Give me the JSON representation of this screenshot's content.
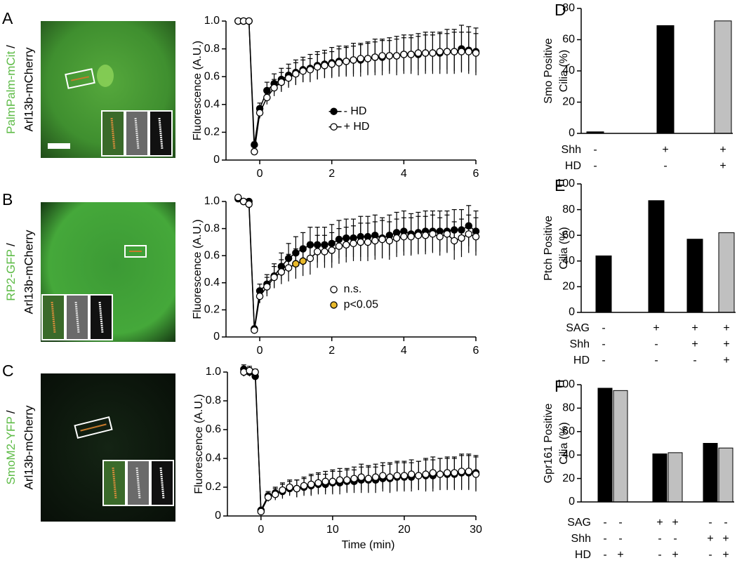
{
  "images": [
    {
      "panel": "A",
      "green_label": "PalmPalm-mCit",
      "separator": "/",
      "red_label": "Arl13b-mCherry"
    },
    {
      "panel": "B",
      "green_label": "RP2-GFP",
      "separator": "/",
      "red_label": "Arl13b-mCherry"
    },
    {
      "panel": "C",
      "green_label": "SmoM2-YFP",
      "separator": "/",
      "red_label": "Arl13b-mCherry"
    }
  ],
  "chart_data": [
    {
      "type": "line",
      "ylabel": "Fluorescence (A.U.)",
      "x": [
        -0.6,
        -0.45,
        -0.3,
        -0.15,
        0,
        0.2,
        0.4,
        0.6,
        0.8,
        1,
        1.2,
        1.4,
        1.6,
        1.8,
        2,
        2.2,
        2.4,
        2.6,
        2.8,
        3,
        3.2,
        3.4,
        3.6,
        3.8,
        4,
        4.2,
        4.4,
        4.6,
        4.8,
        5,
        5.2,
        5.4,
        5.6,
        5.8,
        6
      ],
      "xlim": [
        -0.8,
        6
      ],
      "xticks": [
        0,
        2,
        4,
        6
      ],
      "ylim": [
        0,
        1
      ],
      "yticks": [
        0,
        0.2,
        0.4,
        0.6,
        0.8,
        {
          "value": 1,
          "label": "1.0"
        }
      ],
      "legend": "right",
      "series": [
        {
          "name": "- HD",
          "color": "#000000",
          "fill": "#000000",
          "values": [
            1.0,
            1.0,
            1.0,
            0.11,
            0.37,
            0.5,
            0.55,
            0.58,
            0.61,
            0.63,
            0.65,
            0.66,
            0.68,
            0.69,
            0.7,
            0.71,
            0.71,
            0.72,
            0.72,
            0.73,
            0.74,
            0.74,
            0.75,
            0.75,
            0.76,
            0.76,
            0.76,
            0.77,
            0.77,
            0.77,
            0.78,
            0.78,
            0.8,
            0.79,
            0.78
          ],
          "errors": [
            0.01,
            0.01,
            0.01,
            0.02,
            0.04,
            0.06,
            0.07,
            0.08,
            0.08,
            0.09,
            0.09,
            0.1,
            0.1,
            0.1,
            0.11,
            0.11,
            0.11,
            0.12,
            0.12,
            0.12,
            0.13,
            0.13,
            0.13,
            0.14,
            0.14,
            0.14,
            0.15,
            0.15,
            0.15,
            0.15,
            0.16,
            0.16,
            0.17,
            0.17,
            0.17
          ]
        },
        {
          "name": "+ HD",
          "color": "#000000",
          "fill": "#ffffff",
          "values": [
            1.0,
            1.0,
            1.0,
            0.06,
            0.34,
            0.45,
            0.52,
            0.56,
            0.59,
            0.62,
            0.64,
            0.65,
            0.67,
            0.68,
            0.69,
            0.7,
            0.71,
            0.72,
            0.73,
            0.73,
            0.74,
            0.75,
            0.75,
            0.75,
            0.76,
            0.76,
            0.77,
            0.77,
            0.77,
            0.78,
            0.78,
            0.78,
            0.78,
            0.78,
            0.77
          ],
          "errors": [
            0.01,
            0.01,
            0.01,
            0.02,
            0.04,
            0.05,
            0.06,
            0.07,
            0.07,
            0.08,
            0.08,
            0.08,
            0.09,
            0.09,
            0.09,
            0.1,
            0.1,
            0.1,
            0.1,
            0.11,
            0.11,
            0.11,
            0.11,
            0.12,
            0.12,
            0.12,
            0.12,
            0.13,
            0.13,
            0.13,
            0.13,
            0.14,
            0.14,
            0.14,
            0.14
          ]
        }
      ]
    },
    {
      "type": "line",
      "ylabel": "Fluorescence (A.U.)",
      "x": [
        -0.6,
        -0.45,
        -0.3,
        -0.15,
        0,
        0.2,
        0.4,
        0.6,
        0.8,
        1,
        1.2,
        1.4,
        1.6,
        1.8,
        2,
        2.2,
        2.4,
        2.6,
        2.8,
        3,
        3.2,
        3.4,
        3.6,
        3.8,
        4,
        4.2,
        4.4,
        4.6,
        4.8,
        5,
        5.2,
        5.4,
        5.6,
        5.8,
        6
      ],
      "xlim": [
        -0.8,
        6
      ],
      "xticks": [
        0,
        2,
        4,
        6
      ],
      "ylim": [
        0,
        1
      ],
      "yticks": [
        0,
        0.2,
        0.4,
        0.6,
        0.8,
        {
          "value": 1,
          "label": "1.0"
        }
      ],
      "legend": "right",
      "series": [
        {
          "color": "#000000",
          "fill": "#000000",
          "values": [
            1.02,
            1.0,
            1.0,
            0.06,
            0.34,
            0.39,
            0.45,
            0.52,
            0.58,
            0.62,
            0.65,
            0.68,
            0.68,
            0.68,
            0.69,
            0.72,
            0.73,
            0.73,
            0.74,
            0.74,
            0.75,
            0.73,
            0.75,
            0.77,
            0.78,
            0.76,
            0.77,
            0.78,
            0.78,
            0.78,
            0.78,
            0.79,
            0.79,
            0.82,
            0.78
          ],
          "errors": [
            0.01,
            0.01,
            0.01,
            0.02,
            0.05,
            0.07,
            0.09,
            0.1,
            0.11,
            0.12,
            0.12,
            0.13,
            0.13,
            0.13,
            0.14,
            0.14,
            0.14,
            0.14,
            0.15,
            0.15,
            0.15,
            0.15,
            0.15,
            0.15,
            0.15,
            0.15,
            0.15,
            0.15,
            0.15,
            0.15,
            0.15,
            0.15,
            0.15,
            0.15,
            0.15
          ]
        },
        {
          "name": "n.s.",
          "color": "#000000",
          "fill": "#ffffff",
          "values": [
            1.03,
            1.0,
            0.98,
            0.05,
            0.3,
            0.37,
            0.44,
            0.48,
            0.51,
            0.54,
            0.56,
            0.58,
            0.63,
            0.63,
            0.64,
            0.67,
            0.68,
            0.69,
            0.7,
            0.7,
            0.71,
            0.72,
            0.71,
            0.73,
            0.74,
            0.74,
            0.75,
            0.75,
            0.76,
            0.74,
            0.76,
            0.71,
            0.73,
            0.76,
            0.74
          ],
          "errors": [
            0.01,
            0.01,
            0.01,
            0.02,
            0.05,
            0.07,
            0.08,
            0.09,
            0.1,
            0.11,
            0.11,
            0.12,
            0.12,
            0.12,
            0.13,
            0.13,
            0.13,
            0.13,
            0.14,
            0.14,
            0.14,
            0.14,
            0.14,
            0.14,
            0.14,
            0.14,
            0.14,
            0.14,
            0.14,
            0.14,
            0.14,
            0.14,
            0.14,
            0.14,
            0.14
          ]
        },
        {
          "name": "p<0.05",
          "color": "#000000",
          "fill": "#e8b92b",
          "line": false,
          "values": [
            null,
            null,
            null,
            null,
            null,
            null,
            null,
            null,
            null,
            0.54,
            0.56,
            null,
            null,
            null,
            null,
            null,
            null,
            null,
            null,
            null,
            null,
            null,
            null,
            null,
            null,
            null,
            null,
            null,
            null,
            null,
            null,
            null,
            null,
            null,
            null
          ]
        }
      ]
    },
    {
      "type": "line",
      "ylabel": "Fluorescence (A.U.)",
      "xlabel": "Time (min)",
      "x": [
        -2.4,
        -1.6,
        -0.8,
        0,
        1,
        2,
        3,
        4,
        5,
        6,
        7,
        8,
        9,
        10,
        11,
        12,
        13,
        14,
        15,
        16,
        17,
        18,
        19,
        20,
        21,
        22,
        23,
        24,
        25,
        26,
        27,
        28,
        29,
        30
      ],
      "xlim": [
        -4,
        30
      ],
      "xticks": [
        0,
        10,
        20,
        30
      ],
      "ylim": [
        0,
        1
      ],
      "yticks": [
        0,
        0.2,
        0.4,
        0.6,
        0.8,
        {
          "value": 1,
          "label": "1.0"
        }
      ],
      "series": [
        {
          "color": "#000000",
          "fill": "#000000",
          "values": [
            1.02,
            1.0,
            0.97,
            0.04,
            0.14,
            0.16,
            0.17,
            0.19,
            0.19,
            0.2,
            0.21,
            0.22,
            0.22,
            0.23,
            0.23,
            0.24,
            0.24,
            0.25,
            0.25,
            0.25,
            0.26,
            0.26,
            0.27,
            0.27,
            0.27,
            0.28,
            0.28,
            0.28,
            0.29,
            0.29,
            0.29,
            0.3,
            0.3,
            0.3
          ],
          "errors": [
            0.03,
            0.03,
            0.02,
            0.01,
            0.03,
            0.04,
            0.05,
            0.05,
            0.06,
            0.06,
            0.07,
            0.07,
            0.07,
            0.08,
            0.08,
            0.08,
            0.08,
            0.09,
            0.09,
            0.09,
            0.09,
            0.1,
            0.1,
            0.1,
            0.1,
            0.1,
            0.11,
            0.11,
            0.11,
            0.11,
            0.11,
            0.12,
            0.12,
            0.12
          ]
        },
        {
          "color": "#000000",
          "fill": "#ffffff",
          "values": [
            1.0,
            1.01,
            1.0,
            0.03,
            0.13,
            0.15,
            0.18,
            0.2,
            0.19,
            0.21,
            0.22,
            0.23,
            0.24,
            0.24,
            0.25,
            0.25,
            0.26,
            0.27,
            0.26,
            0.27,
            0.28,
            0.27,
            0.28,
            0.28,
            0.29,
            0.28,
            0.29,
            0.3,
            0.29,
            0.3,
            0.3,
            0.31,
            0.31,
            0.29
          ],
          "errors": [
            0.03,
            0.03,
            0.02,
            0.01,
            0.03,
            0.04,
            0.05,
            0.05,
            0.06,
            0.06,
            0.07,
            0.07,
            0.07,
            0.08,
            0.08,
            0.08,
            0.08,
            0.09,
            0.09,
            0.09,
            0.09,
            0.1,
            0.1,
            0.1,
            0.1,
            0.1,
            0.11,
            0.11,
            0.11,
            0.11,
            0.11,
            0.12,
            0.12,
            0.12
          ]
        }
      ]
    },
    {
      "type": "bar",
      "panel": "D",
      "ylabel": [
        "Smo Positive",
        "Cilia (%)"
      ],
      "values": [
        1,
        69,
        72
      ],
      "colors": [
        "#000000",
        "#000000",
        "#c0c0c0"
      ],
      "ylim": [
        0,
        80
      ],
      "yticks": [
        0,
        20,
        40,
        60,
        80
      ],
      "conditions": [
        {
          "label": "Shh",
          "values": [
            "-",
            "+",
            "+"
          ]
        },
        {
          "label": "HD",
          "values": [
            "-",
            "-",
            "+"
          ]
        }
      ]
    },
    {
      "type": "bar",
      "panel": "E",
      "ylabel": [
        "Ptch Positive",
        "Cilia (%)"
      ],
      "values": [
        44,
        87,
        57,
        62
      ],
      "colors": [
        "#000000",
        "#000000",
        "#000000",
        "#c0c0c0"
      ],
      "ylim": [
        0,
        100
      ],
      "yticks": [
        0,
        20,
        40,
        60,
        80,
        100
      ],
      "conditions": [
        {
          "label": "SAG",
          "values": [
            "-",
            "+",
            "+",
            "+"
          ]
        },
        {
          "label": "Shh",
          "values": [
            "-",
            "-",
            "+",
            "+"
          ]
        },
        {
          "label": "HD",
          "values": [
            "-",
            "-",
            "-",
            "+"
          ]
        }
      ]
    },
    {
      "type": "bar",
      "panel": "F",
      "ylabel": [
        "Gpr161 Positive",
        "Cilia (%)"
      ],
      "values": [
        97,
        95,
        41,
        42,
        50,
        46
      ],
      "colors": [
        "#000000",
        "#c0c0c0",
        "#000000",
        "#c0c0c0",
        "#000000",
        "#c0c0c0"
      ],
      "ylim": [
        0,
        100
      ],
      "yticks": [
        0,
        20,
        40,
        60,
        80,
        100
      ],
      "conditions": [
        {
          "label": "SAG",
          "values": [
            "-",
            "-",
            "+",
            "+",
            "-",
            "-"
          ]
        },
        {
          "label": "Shh",
          "values": [
            "-",
            "-",
            "-",
            "-",
            "+",
            "+"
          ]
        },
        {
          "label": "HD",
          "values": [
            "-",
            "+",
            "-",
            "+",
            "-",
            "+"
          ]
        }
      ]
    }
  ]
}
